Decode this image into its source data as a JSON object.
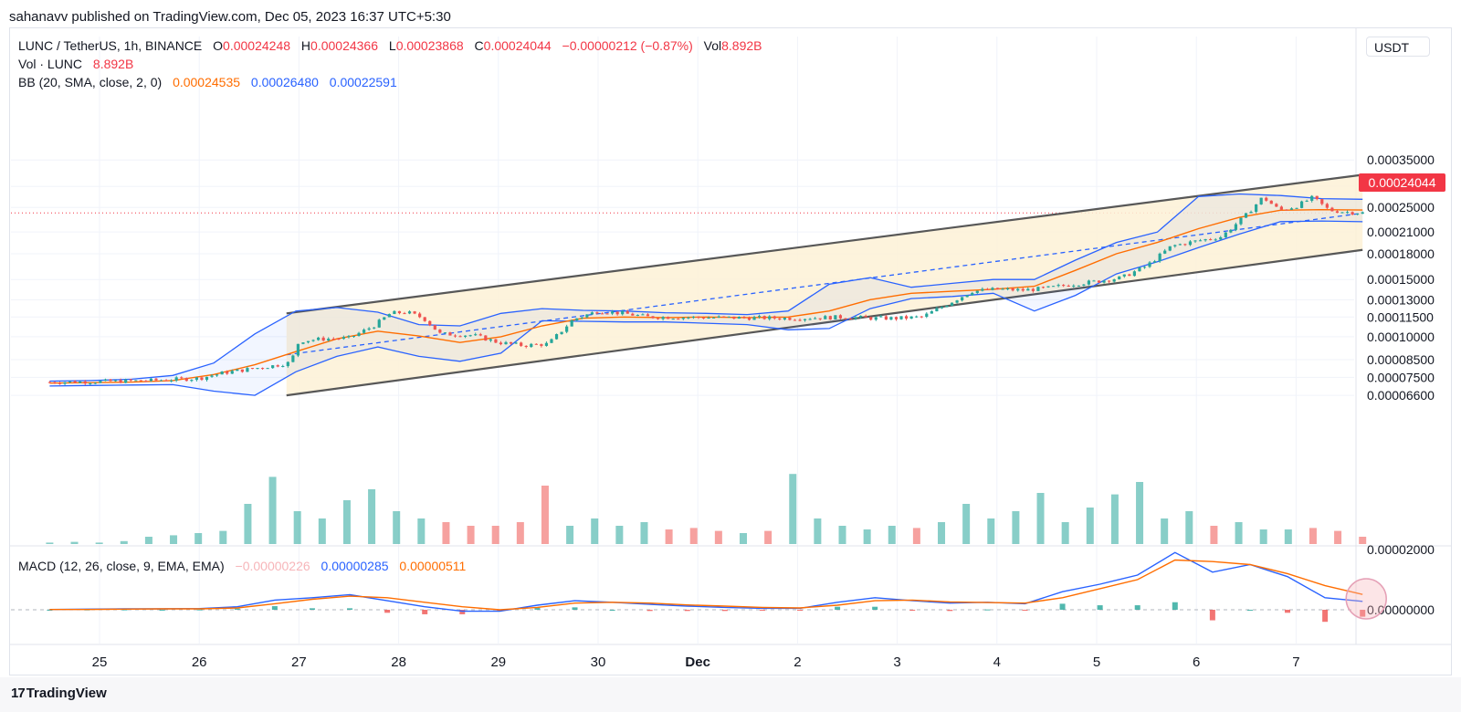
{
  "header": {
    "published": "sahanavv published on TradingView.com, Dec 05, 2023 16:37 UTC+5:30"
  },
  "legend": {
    "symbol": "LUNC / TetherUS, 1h, BINANCE",
    "o_label": "O",
    "o_value": "0.00024248",
    "h_label": "H",
    "h_value": "0.00024366",
    "l_label": "L",
    "l_value": "0.00023868",
    "c_label": "C",
    "c_value": "0.00024044",
    "change": "−0.00000212 (−0.87%)",
    "vol_label": "Vol",
    "vol_value": "8.892B",
    "vol_series": "Vol · LUNC",
    "vol_series_value": "8.892B",
    "bb": "BB (20, SMA, close, 2, 0)",
    "bb_basis": "0.00024535",
    "bb_upper": "0.00026480",
    "bb_lower": "0.00022591",
    "macd": "MACD (12, 26, close, 9, EMA, EMA)",
    "macd_hist": "−0.00000226",
    "macd_line": "0.00000285",
    "macd_signal": "0.00000511"
  },
  "currency": "USDT",
  "last_price": "0.00024044",
  "footer": {
    "brand": "TradingView",
    "logo_glyph": "17"
  },
  "colors": {
    "up": "#26a69a",
    "down": "#ef5350",
    "basis": "#ff6d00",
    "bands": "#2962ff",
    "channel": "#575757",
    "channel_fill": "#fdf1d6",
    "price_line": "#f23645"
  },
  "chart_data": {
    "type": "line",
    "scale": "log",
    "x_ticks": [
      "25",
      "26",
      "27",
      "28",
      "29",
      "30",
      "Dec",
      "2",
      "3",
      "4",
      "5",
      "6",
      "7"
    ],
    "x_range": [
      "Nov 24 06:00",
      "Dec 7 18:00"
    ],
    "y_ticks": [
      "0.00035000",
      "0.00029000",
      "0.00025000",
      "0.00021000",
      "0.00018000",
      "0.00015000",
      "0.00013000",
      "0.00011500",
      "0.00010000",
      "0.00008500",
      "0.00007500",
      "0.00006600"
    ],
    "price_series": [
      {
        "t": "Nov 24 12:00",
        "c": 7.25e-05
      },
      {
        "t": "Nov 25 00:00",
        "c": 7.28e-05
      },
      {
        "t": "Nov 25 12:00",
        "c": 7.33e-05
      },
      {
        "t": "Nov 26 00:00",
        "c": 7.45e-05
      },
      {
        "t": "Nov 26 06:00",
        "c": 7.75e-05
      },
      {
        "t": "Nov 26 12:00",
        "c": 7.95e-05
      },
      {
        "t": "Nov 26 18:00",
        "c": 8.15e-05
      },
      {
        "t": "Nov 26 22:00",
        "c": 8.33e-05
      },
      {
        "t": "Nov 27 00:00",
        "c": 9.7e-05
      },
      {
        "t": "Nov 27 06:00",
        "c": 9.85e-05
      },
      {
        "t": "Nov 27 12:00",
        "c": 9.9e-05
      },
      {
        "t": "Nov 27 18:00",
        "c": 0.000108
      },
      {
        "t": "Nov 27 22:00",
        "c": 0.000118
      },
      {
        "t": "Nov 28 02:00",
        "c": 0.000119
      },
      {
        "t": "Nov 28 06:00",
        "c": 0.000114
      },
      {
        "t": "Nov 28 10:00",
        "c": 0.000102
      },
      {
        "t": "Nov 28 18:00",
        "c": 0.000101
      },
      {
        "t": "Nov 29 00:00",
        "c": 9.6e-05
      },
      {
        "t": "Nov 29 06:00",
        "c": 9.4e-05
      },
      {
        "t": "Nov 29 12:00",
        "c": 9.5e-05
      },
      {
        "t": "Nov 29 18:00",
        "c": 0.000113
      },
      {
        "t": "Nov 30 00:00",
        "c": 0.00012
      },
      {
        "t": "Nov 30 06:00",
        "c": 0.000118
      },
      {
        "t": "Nov 30 12:00",
        "c": 0.000115
      },
      {
        "t": "Dec 1 00:00",
        "c": 0.000114
      },
      {
        "t": "Dec 1 12:00",
        "c": 0.000115
      },
      {
        "t": "Dec 1 18:00",
        "c": 0.000114
      },
      {
        "t": "Dec 2 00:00",
        "c": 0.000114
      },
      {
        "t": "Dec 2 06:00",
        "c": 0.000115
      },
      {
        "t": "Dec 2 18:00",
        "c": 0.000138
      },
      {
        "t": "Dec 3 00:00",
        "c": 0.00014
      },
      {
        "t": "Dec 3 06:00",
        "c": 0.000139
      },
      {
        "t": "Dec 3 12:00",
        "c": 0.000141
      },
      {
        "t": "Dec 3 18:00",
        "c": 0.000145
      },
      {
        "t": "Dec 4 00:00",
        "c": 0.000148
      },
      {
        "t": "Dec 4 06:00",
        "c": 0.000152
      },
      {
        "t": "Dec 4 12:00",
        "c": 0.000165
      },
      {
        "t": "Dec 4 18:00",
        "c": 0.00019
      },
      {
        "t": "Dec 5 00:00",
        "c": 0.000197
      },
      {
        "t": "Dec 5 06:00",
        "c": 0.000203
      },
      {
        "t": "Dec 5 12:00",
        "c": 0.000237
      },
      {
        "t": "Dec 5 16:00",
        "c": 0.000269
      },
      {
        "t": "Dec 5 20:00",
        "c": 0.000245
      },
      {
        "t": "Dec 6 00:00",
        "c": 0.000252
      },
      {
        "t": "Dec 6 04:00",
        "c": 0.000268
      },
      {
        "t": "Dec 6 08:00",
        "c": 0.000245
      },
      {
        "t": "Dec 6 12:00",
        "c": 0.000242
      },
      {
        "t": "Dec 6 16:00",
        "c": 0.0002404
      }
    ],
    "basis": [
      7.2e-05,
      7.22e-05,
      7.25e-05,
      7.33e-05,
      7.65e-05,
      8.2e-05,
      9e-05,
      9.85e-05,
      0.000104,
      0.0001005,
      9.6e-05,
      0.0001,
      0.000108,
      0.000114,
      0.000115,
      0.0001145,
      0.000115,
      0.0001145,
      0.000115,
      0.00012,
      0.00013,
      0.000136,
      0.000138,
      0.00014,
      0.000143,
      0.00016,
      0.00018,
      0.000195,
      0.000215,
      0.000233,
      0.000245,
      0.000246,
      0.0002454
    ],
    "upper": [
      7.3e-05,
      7.33e-05,
      7.4e-05,
      7.6e-05,
      8.3e-05,
      0.000102,
      0.00012,
      0.000123,
      0.000119,
      0.000109,
      0.000108,
      0.000118,
      0.000122,
      0.0001205,
      0.00012,
      0.0001185,
      0.000118,
      0.000117,
      0.00012,
      0.000145,
      0.000152,
      0.000142,
      0.000146,
      0.00015,
      0.00015,
      0.000172,
      0.000195,
      0.00021,
      0.00027,
      0.000275,
      0.000272,
      0.000266,
      0.0002648
    ],
    "lower": [
      7.05e-05,
      7.08e-05,
      7.1e-05,
      7.12e-05,
      6.8e-05,
      6.6e-05,
      7.8e-05,
      8.7e-05,
      9.3e-05,
      8.7e-05,
      8.4e-05,
      8.9e-05,
      0.000112,
      0.0001115,
      0.000111,
      0.000111,
      0.00011,
      0.000109,
      0.000105,
      0.000106,
      0.000122,
      0.000131,
      0.000133,
      0.000136,
      0.00012,
      0.000134,
      0.000156,
      0.00017,
      0.000188,
      0.000207,
      0.000226,
      0.000227,
      0.0002259
    ],
    "channel": {
      "upper": {
        "from": {
          "t": "Nov 26 21:00",
          "y": 0.000118
        },
        "to": {
          "t": "Dec 6 16:00",
          "y": 0.000315
        }
      },
      "lower": {
        "from": {
          "t": "Nov 26 21:00",
          "y": 6.6e-05
        },
        "to": {
          "t": "Dec 6 16:00",
          "y": 0.000185
        }
      },
      "middle": {
        "from": {
          "t": "Nov 26 21:00",
          "y": 8.8e-05
        },
        "to": {
          "t": "Dec 6 16:00",
          "y": 0.00024
        }
      }
    },
    "volume_relative": [
      0.02,
      0.03,
      0.02,
      0.04,
      0.1,
      0.12,
      0.15,
      0.18,
      0.55,
      0.92,
      0.45,
      0.35,
      0.6,
      0.75,
      0.45,
      0.35,
      0.3,
      0.25,
      0.25,
      0.3,
      0.8,
      0.25,
      0.35,
      0.25,
      0.3,
      0.2,
      0.22,
      0.18,
      0.15,
      0.18,
      0.96,
      0.35,
      0.25,
      0.2,
      0.25,
      0.22,
      0.3,
      0.55,
      0.35,
      0.45,
      0.7,
      0.3,
      0.5,
      0.68,
      0.85,
      0.35,
      0.45,
      0.25,
      0.3,
      0.2,
      0.2,
      0.22,
      0.18,
      0.1
    ],
    "macd": {
      "y_ticks": [
        "0.00002000",
        "0.00000000"
      ],
      "macd_line": [
        1e-07,
        2e-07,
        3e-07,
        3e-07,
        4e-07,
        1e-06,
        3.2e-06,
        4e-06,
        5e-06,
        3e-06,
        1e-06,
        -5e-07,
        -5e-07,
        1.5e-06,
        3e-06,
        2.5e-06,
        1.8e-06,
        1.2e-06,
        8e-07,
        5e-07,
        5e-07,
        2.5e-06,
        4e-06,
        3e-06,
        2.2e-06,
        2.5e-06,
        2e-06,
        6e-06,
        8.5e-06,
        1.15e-05,
        1.9e-05,
        1.25e-05,
        1.5e-05,
        1.1e-05,
        4e-06,
        2.8e-06
      ],
      "signal_line": [
        1e-07,
        1e-07,
        2e-07,
        3e-07,
        3e-07,
        6e-07,
        2e-06,
        3.5e-06,
        4.5e-06,
        4e-06,
        2.5e-06,
        1e-06,
        0.0,
        8e-07,
        2.2e-06,
        2.5e-06,
        2.2e-06,
        1.6e-06,
        1.2e-06,
        8e-07,
        6e-07,
        1.5e-06,
        3e-06,
        3.2e-06,
        2.6e-06,
        2.4e-06,
        2.2e-06,
        4e-06,
        7e-06,
        1e-05,
        1.65e-05,
        1.6e-05,
        1.5e-05,
        1.2e-05,
        8e-06,
        5.1e-06
      ],
      "histogram": [
        0.0,
        1e-07,
        1e-07,
        0.0,
        1e-07,
        4e-07,
        1.2e-06,
        5e-07,
        5e-07,
        -1e-06,
        -1.5e-06,
        -1.5e-06,
        -5e-07,
        7e-07,
        8e-07,
        0.0,
        -4e-07,
        -4e-07,
        -4e-07,
        -3e-07,
        -1e-07,
        1e-06,
        1e-06,
        -2e-07,
        -4e-07,
        1e-07,
        -2e-07,
        2e-06,
        1.5e-06,
        1.5e-06,
        2.5e-06,
        -3.5e-06,
        0.0,
        -1e-06,
        -4e-06,
        -2.3e-06
      ]
    }
  }
}
